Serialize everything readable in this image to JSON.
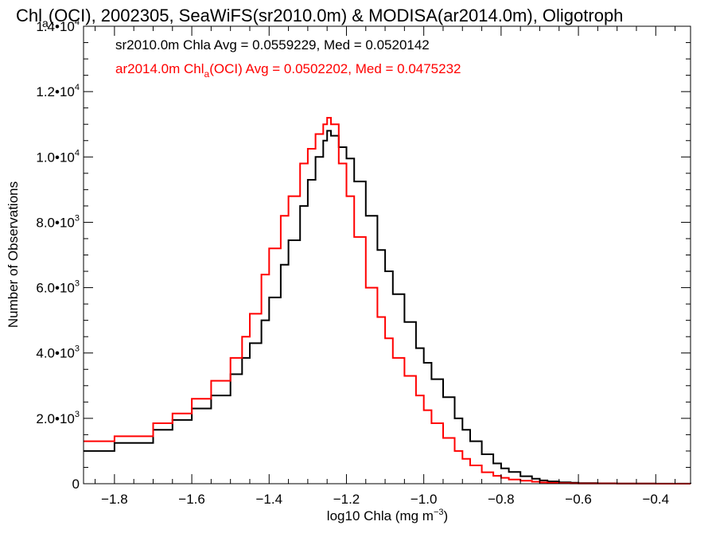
{
  "chart_data": {
    "type": "line",
    "title": {
      "prefix": "Chl",
      "sub": "a",
      "suffix": "(OCI), 2002305, SeaWiFS(sr2010.0m) & MODISA(ar2014.0m), Oligotroph"
    },
    "xlabel": {
      "main": "log10 Chla (mg m",
      "sup": "−3",
      "end": ")"
    },
    "ylabel": "Number of Observations",
    "xlim": [
      -1.88,
      -0.31
    ],
    "ylim": [
      0,
      14000
    ],
    "x_ticks": [
      {
        "value": -1.8,
        "label": "−1.8"
      },
      {
        "value": -1.6,
        "label": "−1.6"
      },
      {
        "value": -1.4,
        "label": "−1.4"
      },
      {
        "value": -1.2,
        "label": "−1.2"
      },
      {
        "value": -1.0,
        "label": "−1.0"
      },
      {
        "value": -0.8,
        "label": "−0.8"
      },
      {
        "value": -0.6,
        "label": "−0.6"
      },
      {
        "value": -0.4,
        "label": "−0.4"
      }
    ],
    "y_ticks": [
      {
        "value": 0,
        "mantissa": "0",
        "exp": ""
      },
      {
        "value": 2000,
        "mantissa": "2.0•10",
        "exp": "3"
      },
      {
        "value": 4000,
        "mantissa": "4.0•10",
        "exp": "3"
      },
      {
        "value": 6000,
        "mantissa": "6.0•10",
        "exp": "3"
      },
      {
        "value": 8000,
        "mantissa": "8.0•10",
        "exp": "3"
      },
      {
        "value": 10000,
        "mantissa": "1.0•10",
        "exp": "4"
      },
      {
        "value": 12000,
        "mantissa": "1.2•10",
        "exp": "4"
      },
      {
        "value": 14000,
        "mantissa": "1.4•10",
        "exp": "4"
      }
    ],
    "annotations": [
      {
        "text": "sr2010.0m Chla Avg = 0.0559229, Med = 0.0520142",
        "color": "#000000"
      },
      {
        "prefix": "ar2014.0m Chl",
        "sub": "a",
        "suffix": "(OCI) Avg = 0.0502202, Med = 0.0475232",
        "color": "#ff0000"
      }
    ],
    "series": [
      {
        "color": "#000000",
        "style": "step",
        "x": [
          -1.88,
          -1.8,
          -1.7,
          -1.65,
          -1.6,
          -1.55,
          -1.5,
          -1.47,
          -1.45,
          -1.42,
          -1.4,
          -1.37,
          -1.35,
          -1.32,
          -1.3,
          -1.28,
          -1.26,
          -1.25,
          -1.24,
          -1.22,
          -1.2,
          -1.18,
          -1.15,
          -1.12,
          -1.1,
          -1.08,
          -1.05,
          -1.02,
          -1.0,
          -0.98,
          -0.95,
          -0.92,
          -0.9,
          -0.88,
          -0.85,
          -0.82,
          -0.8,
          -0.78,
          -0.75,
          -0.72,
          -0.7,
          -0.68,
          -0.65,
          -0.62,
          -0.6,
          -0.55,
          -0.5,
          -0.45,
          -0.4,
          -0.35,
          -0.31
        ],
        "y": [
          1000,
          1250,
          1650,
          1950,
          2300,
          2700,
          3350,
          3850,
          4300,
          5000,
          5700,
          6700,
          7450,
          8500,
          9300,
          10000,
          10500,
          10800,
          10650,
          10300,
          9950,
          9250,
          8200,
          7150,
          6500,
          5800,
          4950,
          4150,
          3700,
          3200,
          2650,
          2000,
          1650,
          1300,
          900,
          620,
          470,
          360,
          230,
          150,
          100,
          70,
          45,
          30,
          20,
          12,
          8,
          5,
          3,
          2,
          1
        ]
      },
      {
        "color": "#ff0000",
        "style": "step",
        "x": [
          -1.88,
          -1.8,
          -1.7,
          -1.65,
          -1.6,
          -1.55,
          -1.5,
          -1.47,
          -1.45,
          -1.42,
          -1.4,
          -1.37,
          -1.35,
          -1.32,
          -1.3,
          -1.28,
          -1.26,
          -1.25,
          -1.24,
          -1.22,
          -1.2,
          -1.18,
          -1.15,
          -1.12,
          -1.1,
          -1.08,
          -1.05,
          -1.02,
          -1.0,
          -0.98,
          -0.95,
          -0.92,
          -0.9,
          -0.88,
          -0.85,
          -0.82,
          -0.8,
          -0.78,
          -0.75,
          -0.72,
          -0.7,
          -0.68,
          -0.65,
          -0.62,
          -0.6,
          -0.55,
          -0.5,
          -0.45,
          -0.4,
          -0.35,
          -0.31
        ],
        "y": [
          1300,
          1450,
          1850,
          2150,
          2600,
          3150,
          3850,
          4500,
          5200,
          6400,
          7200,
          8200,
          8800,
          9800,
          10250,
          10700,
          11000,
          11200,
          11000,
          9800,
          8800,
          7550,
          6000,
          5100,
          4450,
          3850,
          3300,
          2700,
          2250,
          1850,
          1400,
          1000,
          760,
          560,
          350,
          240,
          180,
          130,
          90,
          60,
          40,
          25,
          15,
          10,
          7,
          4,
          3,
          2,
          1,
          1,
          0
        ]
      }
    ]
  }
}
